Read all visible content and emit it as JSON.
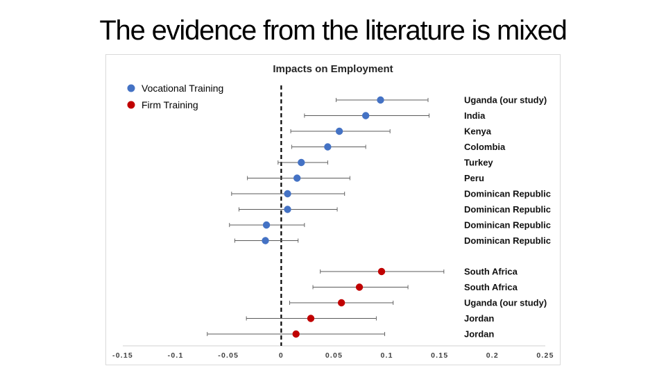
{
  "slide": {
    "title": "The evidence from the literature is mixed"
  },
  "chart_data": {
    "type": "scatter",
    "title": "Impacts on Employment",
    "orientation": "horizontal-forest-plot",
    "xlim": [
      -0.15,
      0.25
    ],
    "x_ticks": [
      -0.15,
      -0.1,
      -0.05,
      0,
      0.05,
      0.1,
      0.15,
      0.2,
      0.25
    ],
    "x_tick_labels": [
      "-0.15",
      "-0.1",
      "-0.05",
      "0",
      "0.05",
      "0.1",
      "0.15",
      "0.2",
      "0.25"
    ],
    "reference_line_x": 0,
    "legend_placement": "top-left",
    "grid": false,
    "series": [
      {
        "name": "Vocational Training",
        "color": "#4472c4",
        "label_color": "#2e5aa8",
        "points": [
          {
            "label": "Uganda (our study)",
            "estimate": 0.094,
            "ci_low": 0.052,
            "ci_high": 0.139,
            "highlight": true
          },
          {
            "label": "India",
            "estimate": 0.08,
            "ci_low": 0.022,
            "ci_high": 0.14,
            "highlight": false
          },
          {
            "label": "Kenya",
            "estimate": 0.055,
            "ci_low": 0.009,
            "ci_high": 0.103,
            "highlight": false
          },
          {
            "label": "Colombia",
            "estimate": 0.044,
            "ci_low": 0.01,
            "ci_high": 0.08,
            "highlight": false
          },
          {
            "label": "Turkey",
            "estimate": 0.019,
            "ci_low": -0.003,
            "ci_high": 0.044,
            "highlight": false
          },
          {
            "label": "Peru",
            "estimate": 0.015,
            "ci_low": -0.032,
            "ci_high": 0.065,
            "highlight": false
          },
          {
            "label": "Dominican Republic",
            "estimate": 0.006,
            "ci_low": -0.047,
            "ci_high": 0.06,
            "highlight": false
          },
          {
            "label": "Dominican Republic",
            "estimate": 0.006,
            "ci_low": -0.04,
            "ci_high": 0.053,
            "highlight": false
          },
          {
            "label": "Dominican Republic",
            "estimate": -0.014,
            "ci_low": -0.049,
            "ci_high": 0.022,
            "highlight": false
          },
          {
            "label": "Dominican Republic",
            "estimate": -0.015,
            "ci_low": -0.044,
            "ci_high": 0.016,
            "highlight": false
          }
        ]
      },
      {
        "name": "Firm Training",
        "color": "#c00000",
        "label_color": "#c00000",
        "points": [
          {
            "label": "South Africa",
            "estimate": 0.095,
            "ci_low": 0.037,
            "ci_high": 0.154,
            "highlight": false
          },
          {
            "label": "South Africa",
            "estimate": 0.074,
            "ci_low": 0.03,
            "ci_high": 0.12,
            "highlight": false
          },
          {
            "label": "Uganda (our study)",
            "estimate": 0.057,
            "ci_low": 0.008,
            "ci_high": 0.106,
            "highlight": true
          },
          {
            "label": "Jordan",
            "estimate": 0.028,
            "ci_low": -0.033,
            "ci_high": 0.09,
            "highlight": false
          },
          {
            "label": "Jordan",
            "estimate": 0.014,
            "ci_low": -0.07,
            "ci_high": 0.098,
            "highlight": false
          }
        ]
      }
    ]
  }
}
